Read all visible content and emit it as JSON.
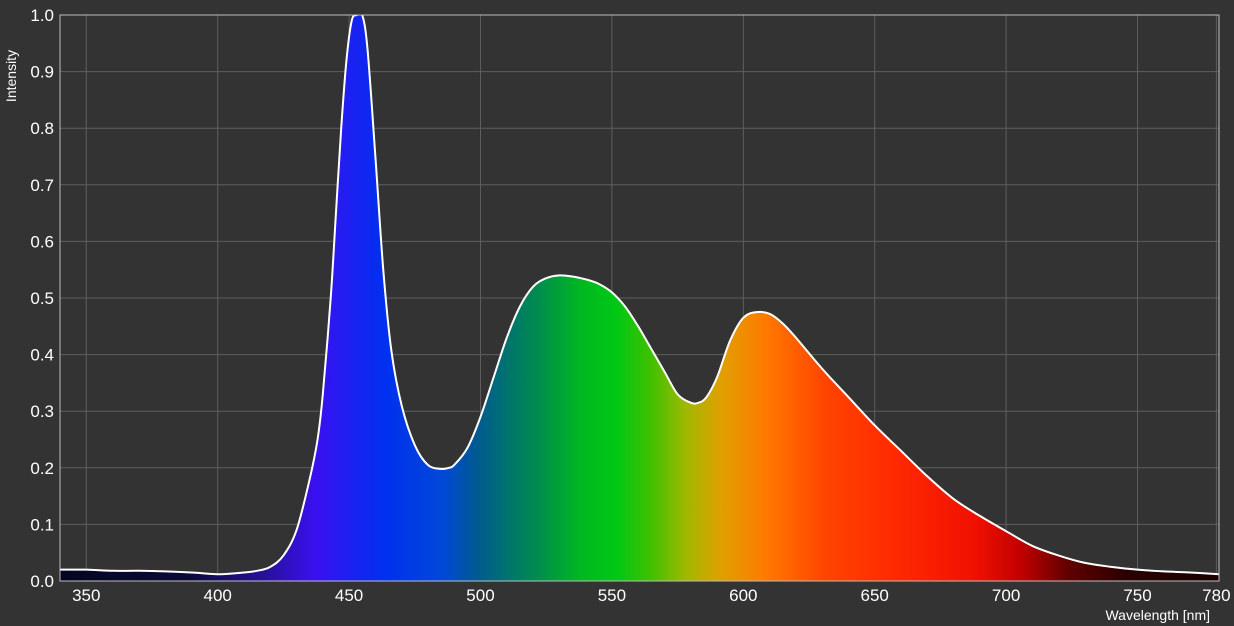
{
  "chart_data": {
    "type": "area",
    "title": "",
    "xlabel": "Wavelength [nm]",
    "ylabel": "Intensity",
    "xlim": [
      340,
      781
    ],
    "ylim": [
      0,
      1.0
    ],
    "x_ticks": [
      350,
      400,
      450,
      500,
      550,
      600,
      650,
      700,
      750,
      780
    ],
    "y_ticks": [
      "0.0",
      "0.1",
      "0.2",
      "0.3",
      "0.4",
      "0.5",
      "0.6",
      "0.7",
      "0.8",
      "0.9",
      "1.0"
    ],
    "grid": true,
    "colors": {
      "background": "#333333",
      "grid": "#5e5e5e",
      "line": "#ffffff"
    },
    "series": [
      {
        "x": [
          340,
          350,
          360,
          370,
          380,
          390,
          400,
          405,
          410,
          415,
          420,
          425,
          430,
          435,
          438,
          440,
          443,
          445,
          447,
          449,
          451,
          453,
          455,
          457,
          460,
          463,
          466,
          470,
          475,
          480,
          485,
          488,
          490,
          495,
          500,
          505,
          510,
          515,
          520,
          525,
          530,
          535,
          540,
          545,
          550,
          555,
          560,
          565,
          570,
          575,
          580,
          583,
          586,
          590,
          595,
          600,
          605,
          610,
          615,
          620,
          630,
          640,
          650,
          660,
          670,
          680,
          690,
          700,
          710,
          720,
          730,
          740,
          750,
          760,
          770,
          781
        ],
        "y": [
          0.02,
          0.02,
          0.018,
          0.018,
          0.017,
          0.015,
          0.012,
          0.013,
          0.015,
          0.018,
          0.025,
          0.045,
          0.09,
          0.18,
          0.25,
          0.33,
          0.5,
          0.65,
          0.8,
          0.92,
          0.99,
          1.0,
          1.0,
          0.94,
          0.75,
          0.55,
          0.41,
          0.31,
          0.24,
          0.205,
          0.198,
          0.2,
          0.205,
          0.235,
          0.29,
          0.36,
          0.43,
          0.485,
          0.52,
          0.535,
          0.54,
          0.538,
          0.533,
          0.525,
          0.51,
          0.485,
          0.45,
          0.41,
          0.37,
          0.33,
          0.315,
          0.315,
          0.325,
          0.36,
          0.425,
          0.465,
          0.475,
          0.472,
          0.455,
          0.43,
          0.375,
          0.325,
          0.275,
          0.23,
          0.185,
          0.145,
          0.115,
          0.088,
          0.062,
          0.045,
          0.032,
          0.025,
          0.02,
          0.017,
          0.015,
          0.012
        ]
      }
    ]
  }
}
